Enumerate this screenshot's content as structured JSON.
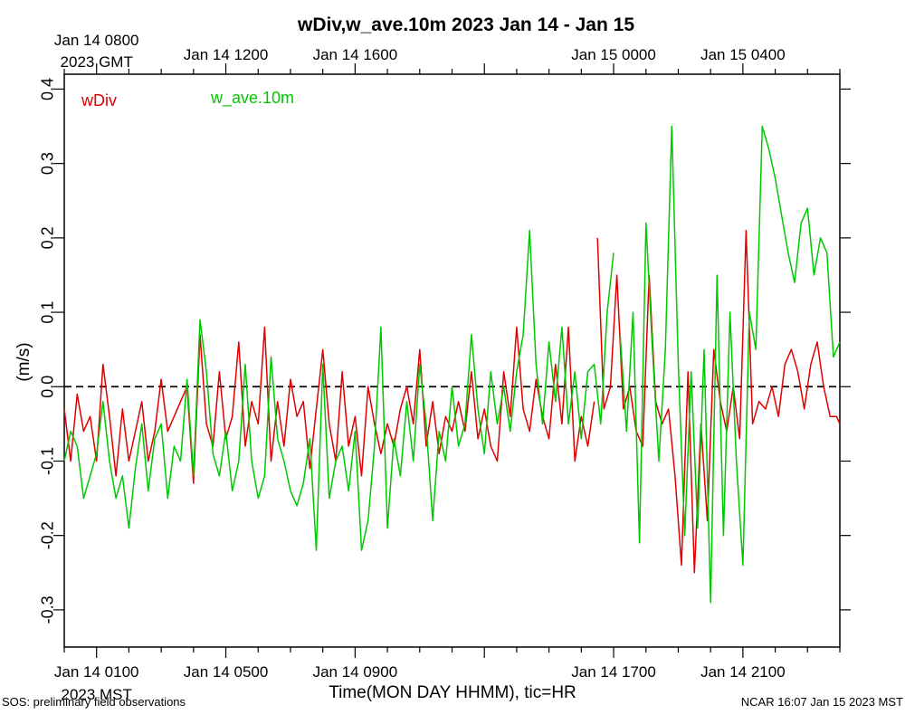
{
  "chart_data": {
    "type": "line",
    "title": "wDiv,w_ave.10m 2023 Jan 14 - Jan 15",
    "xlabel": "Time(MON DAY HHMM), tic=HR",
    "ylabel": "(m/s)",
    "ylim": [
      -0.35,
      0.42
    ],
    "xlim_hours_from_0000_MST": [
      0,
      24
    ],
    "y_ticks": [
      -0.3,
      -0.2,
      -0.1,
      0.0,
      0.1,
      0.2,
      0.3,
      0.4
    ],
    "y_tick_labels": [
      "-0.3",
      "-0.2",
      "-0.1",
      "0.0",
      "0.1",
      "0.2",
      "0.3",
      "0.4"
    ],
    "bottom_axis_labels": [
      {
        "hour": 1,
        "label": "Jan 14 0100",
        "sublabel": "2023 MST"
      },
      {
        "hour": 5,
        "label": "Jan 14 0500"
      },
      {
        "hour": 9,
        "label": "Jan 14 0900"
      },
      {
        "hour": 17,
        "label": "Jan 14 1700"
      },
      {
        "hour": 21,
        "label": "Jan 14 2100"
      }
    ],
    "top_axis_labels": [
      {
        "hour": 1,
        "label": "Jan 14 0800",
        "sublabel": "2023 GMT"
      },
      {
        "hour": 5,
        "label": "Jan 14 1200"
      },
      {
        "hour": 9,
        "label": "Jan 14 1600"
      },
      {
        "hour": 17,
        "label": "Jan 15 0000"
      },
      {
        "hour": 21,
        "label": "Jan 15 0400"
      }
    ],
    "zero_line": true,
    "series": [
      {
        "name": "wDiv",
        "color": "#e00000",
        "segments": [
          [
            [
              0.0,
              -0.03
            ],
            [
              0.2,
              -0.1
            ],
            [
              0.4,
              -0.01
            ],
            [
              0.6,
              -0.06
            ],
            [
              0.8,
              -0.04
            ],
            [
              1.0,
              -0.1
            ],
            [
              1.2,
              0.03
            ],
            [
              1.4,
              -0.04
            ],
            [
              1.6,
              -0.12
            ],
            [
              1.8,
              -0.03
            ],
            [
              2.0,
              -0.1
            ],
            [
              2.2,
              -0.06
            ],
            [
              2.4,
              -0.02
            ],
            [
              2.6,
              -0.1
            ],
            [
              2.8,
              -0.06
            ],
            [
              3.0,
              0.01
            ],
            [
              3.2,
              -0.06
            ],
            [
              3.4,
              -0.04
            ],
            [
              3.6,
              -0.02
            ],
            [
              3.8,
              0.0
            ],
            [
              4.0,
              -0.13
            ],
            [
              4.2,
              0.07
            ],
            [
              4.4,
              -0.05
            ],
            [
              4.6,
              -0.08
            ],
            [
              4.8,
              0.02
            ],
            [
              5.0,
              -0.07
            ],
            [
              5.2,
              -0.04
            ],
            [
              5.4,
              0.06
            ],
            [
              5.6,
              -0.08
            ],
            [
              5.8,
              -0.02
            ],
            [
              6.0,
              -0.05
            ],
            [
              6.2,
              0.08
            ],
            [
              6.4,
              -0.1
            ],
            [
              6.6,
              -0.02
            ],
            [
              6.8,
              -0.08
            ],
            [
              7.0,
              0.01
            ],
            [
              7.2,
              -0.04
            ],
            [
              7.4,
              -0.02
            ],
            [
              7.6,
              -0.11
            ],
            [
              7.8,
              -0.03
            ],
            [
              8.0,
              0.05
            ],
            [
              8.2,
              -0.05
            ],
            [
              8.4,
              -0.1
            ],
            [
              8.6,
              0.02
            ],
            [
              8.8,
              -0.08
            ],
            [
              9.0,
              -0.04
            ],
            [
              9.2,
              -0.12
            ],
            [
              9.4,
              0.0
            ],
            [
              9.6,
              -0.05
            ],
            [
              9.8,
              -0.09
            ],
            [
              10.0,
              -0.05
            ],
            [
              10.2,
              -0.08
            ],
            [
              10.4,
              -0.03
            ],
            [
              10.6,
              0.0
            ],
            [
              10.8,
              -0.05
            ],
            [
              11.0,
              0.05
            ],
            [
              11.2,
              -0.08
            ],
            [
              11.4,
              -0.02
            ],
            [
              11.6,
              -0.09
            ],
            [
              11.8,
              -0.04
            ],
            [
              12.0,
              -0.06
            ],
            [
              12.2,
              -0.02
            ],
            [
              12.4,
              -0.06
            ],
            [
              12.6,
              0.02
            ],
            [
              12.8,
              -0.07
            ],
            [
              13.0,
              -0.03
            ],
            [
              13.2,
              -0.08
            ],
            [
              13.4,
              -0.1
            ],
            [
              13.6,
              0.02
            ],
            [
              13.8,
              -0.04
            ],
            [
              14.0,
              0.08
            ],
            [
              14.2,
              -0.03
            ],
            [
              14.4,
              -0.06
            ],
            [
              14.6,
              0.01
            ],
            [
              14.8,
              -0.04
            ],
            [
              15.0,
              -0.07
            ],
            [
              15.2,
              0.03
            ],
            [
              15.4,
              -0.05
            ],
            [
              15.6,
              0.08
            ],
            [
              15.8,
              -0.1
            ],
            [
              16.0,
              -0.04
            ],
            [
              16.2,
              -0.08
            ],
            [
              16.4,
              -0.02
            ]
          ],
          [
            [
              16.5,
              0.2
            ],
            [
              16.7,
              -0.03
            ],
            [
              16.9,
              0.0
            ],
            [
              17.1,
              0.15
            ],
            [
              17.3,
              -0.03
            ],
            [
              17.5,
              0.0
            ],
            [
              17.7,
              -0.06
            ],
            [
              17.9,
              -0.08
            ],
            [
              18.1,
              0.15
            ],
            [
              18.3,
              -0.02
            ],
            [
              18.5,
              -0.05
            ],
            [
              18.7,
              -0.03
            ],
            [
              18.9,
              -0.12
            ],
            [
              19.1,
              -0.24
            ],
            [
              19.3,
              0.02
            ],
            [
              19.5,
              -0.25
            ],
            [
              19.7,
              -0.05
            ],
            [
              19.9,
              -0.18
            ],
            [
              20.1,
              0.05
            ],
            [
              20.3,
              -0.02
            ],
            [
              20.5,
              -0.06
            ],
            [
              20.7,
              0.0
            ],
            [
              20.9,
              -0.07
            ],
            [
              21.1,
              0.21
            ],
            [
              21.3,
              -0.05
            ],
            [
              21.5,
              -0.02
            ],
            [
              21.7,
              -0.03
            ],
            [
              21.9,
              0.0
            ],
            [
              22.1,
              -0.04
            ],
            [
              22.3,
              0.03
            ],
            [
              22.5,
              0.05
            ],
            [
              22.7,
              0.02
            ],
            [
              22.9,
              -0.03
            ],
            [
              23.1,
              0.03
            ],
            [
              23.3,
              0.06
            ],
            [
              23.5,
              0.0
            ],
            [
              23.7,
              -0.04
            ],
            [
              23.9,
              -0.04
            ],
            [
              24.0,
              -0.05
            ]
          ]
        ]
      },
      {
        "name": "w_ave.10m",
        "color": "#00c800",
        "segments": [
          [
            [
              0.0,
              -0.1
            ],
            [
              0.2,
              -0.06
            ],
            [
              0.4,
              -0.08
            ],
            [
              0.6,
              -0.15
            ],
            [
              0.8,
              -0.12
            ],
            [
              1.0,
              -0.09
            ],
            [
              1.2,
              -0.02
            ],
            [
              1.4,
              -0.1
            ],
            [
              1.6,
              -0.15
            ],
            [
              1.8,
              -0.12
            ],
            [
              2.0,
              -0.19
            ],
            [
              2.2,
              -0.11
            ],
            [
              2.4,
              -0.05
            ],
            [
              2.6,
              -0.14
            ],
            [
              2.8,
              -0.07
            ],
            [
              3.0,
              -0.05
            ],
            [
              3.2,
              -0.15
            ],
            [
              3.4,
              -0.08
            ],
            [
              3.6,
              -0.1
            ],
            [
              3.8,
              0.01
            ],
            [
              4.0,
              -0.12
            ],
            [
              4.2,
              0.09
            ],
            [
              4.4,
              0.02
            ],
            [
              4.6,
              -0.09
            ],
            [
              4.8,
              -0.12
            ],
            [
              5.0,
              -0.06
            ],
            [
              5.2,
              -0.14
            ],
            [
              5.4,
              -0.1
            ],
            [
              5.6,
              0.03
            ],
            [
              5.8,
              -0.1
            ],
            [
              6.0,
              -0.15
            ],
            [
              6.2,
              -0.12
            ],
            [
              6.4,
              0.04
            ],
            [
              6.6,
              -0.07
            ],
            [
              6.8,
              -0.1
            ],
            [
              7.0,
              -0.14
            ],
            [
              7.2,
              -0.16
            ],
            [
              7.4,
              -0.13
            ],
            [
              7.6,
              -0.07
            ],
            [
              7.8,
              -0.22
            ],
            [
              8.0,
              0.03
            ],
            [
              8.2,
              -0.15
            ],
            [
              8.4,
              -0.1
            ],
            [
              8.6,
              -0.08
            ],
            [
              8.8,
              -0.14
            ],
            [
              9.0,
              -0.06
            ],
            [
              9.2,
              -0.22
            ],
            [
              9.4,
              -0.18
            ],
            [
              9.6,
              -0.08
            ],
            [
              9.8,
              0.08
            ],
            [
              10.0,
              -0.19
            ],
            [
              10.2,
              -0.07
            ],
            [
              10.4,
              -0.12
            ],
            [
              10.6,
              -0.02
            ],
            [
              10.8,
              -0.1
            ],
            [
              11.0,
              0.03
            ],
            [
              11.2,
              -0.05
            ],
            [
              11.4,
              -0.18
            ],
            [
              11.6,
              -0.06
            ],
            [
              11.8,
              -0.1
            ],
            [
              12.0,
              0.0
            ],
            [
              12.2,
              -0.08
            ],
            [
              12.4,
              -0.05
            ],
            [
              12.6,
              0.07
            ],
            [
              12.8,
              -0.03
            ],
            [
              13.0,
              -0.09
            ],
            [
              13.2,
              0.02
            ],
            [
              13.4,
              -0.05
            ],
            [
              13.6,
              0.0
            ],
            [
              13.8,
              -0.06
            ],
            [
              14.0,
              0.02
            ],
            [
              14.2,
              0.07
            ],
            [
              14.4,
              0.21
            ],
            [
              14.6,
              0.03
            ],
            [
              14.8,
              -0.05
            ],
            [
              15.0,
              0.06
            ],
            [
              15.2,
              -0.02
            ],
            [
              15.4,
              0.08
            ],
            [
              15.6,
              -0.05
            ],
            [
              15.8,
              0.02
            ],
            [
              16.0,
              -0.07
            ],
            [
              16.2,
              0.02
            ],
            [
              16.4,
              0.03
            ],
            [
              16.6,
              -0.05
            ],
            [
              16.8,
              0.1
            ],
            [
              17.0,
              0.18
            ]
          ],
          [
            [
              17.2,
              0.07
            ],
            [
              17.4,
              -0.06
            ],
            [
              17.6,
              0.1
            ],
            [
              17.8,
              -0.21
            ],
            [
              18.0,
              0.22
            ],
            [
              18.2,
              0.05
            ],
            [
              18.4,
              -0.1
            ],
            [
              18.6,
              0.05
            ],
            [
              18.8,
              0.35
            ],
            [
              19.0,
              0.03
            ],
            [
              19.2,
              -0.2
            ],
            [
              19.4,
              0.02
            ],
            [
              19.6,
              -0.19
            ],
            [
              19.8,
              0.05
            ],
            [
              20.0,
              -0.29
            ],
            [
              20.2,
              0.15
            ],
            [
              20.4,
              -0.2
            ],
            [
              20.6,
              0.1
            ],
            [
              20.8,
              -0.1
            ],
            [
              21.0,
              -0.24
            ],
            [
              21.2,
              0.1
            ],
            [
              21.4,
              0.05
            ],
            [
              21.6,
              0.35
            ],
            [
              21.8,
              0.32
            ],
            [
              22.0,
              0.28
            ],
            [
              22.2,
              0.23
            ],
            [
              22.4,
              0.18
            ],
            [
              22.6,
              0.14
            ],
            [
              22.8,
              0.22
            ],
            [
              23.0,
              0.24
            ],
            [
              23.2,
              0.15
            ],
            [
              23.4,
              0.2
            ],
            [
              23.6,
              0.18
            ],
            [
              23.8,
              0.04
            ],
            [
              24.0,
              0.06
            ]
          ]
        ]
      }
    ]
  },
  "footer": {
    "left": "SOS: preliminary field observations",
    "right": "NCAR 16:07 Jan 15 2023 MST"
  }
}
